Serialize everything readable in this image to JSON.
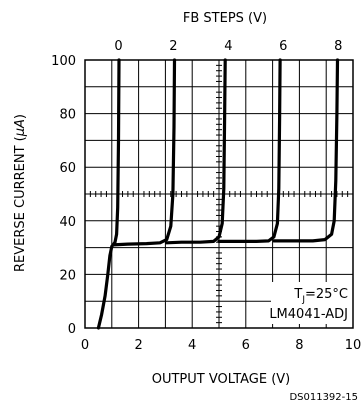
{
  "chart_data": {
    "type": "line",
    "top_title": "FB STEPS (V)",
    "xlabel": "OUTPUT VOLTAGE (V)",
    "ylabel": "REVERSE CURRENT (",
    "ylabel_unit": "µA",
    "ylabel_close": ")",
    "xlim": [
      0,
      10
    ],
    "ylim": [
      0,
      100
    ],
    "x_ticks": [
      "0",
      "2",
      "4",
      "6",
      "8",
      "10"
    ],
    "y_ticks": [
      "0",
      "20",
      "40",
      "60",
      "80",
      "100"
    ],
    "top_ticks": [
      "0",
      "2",
      "4",
      "6",
      "8"
    ],
    "grid": true,
    "annotation_tj_t": "T",
    "annotation_tj_sub": "J",
    "annotation_tj_val": "=25°C",
    "annotation_part": "LM4041-ADJ",
    "figure_id": "DS011392-15",
    "series": [
      {
        "x": [
          0.5,
          0.62,
          0.75,
          0.85,
          0.93,
          0.98,
          1.0,
          1.05,
          1.12,
          1.18,
          1.22,
          1.25,
          1.27
        ],
        "y": [
          0,
          5,
          12,
          20,
          27,
          29.5,
          30.5,
          31,
          32,
          35,
          45,
          70,
          100
        ]
      },
      {
        "x": [
          1.05,
          1.6,
          2.3,
          2.8,
          3.05,
          3.2,
          3.28,
          3.32,
          3.34
        ],
        "y": [
          31,
          31.3,
          31.5,
          31.8,
          33,
          38,
          50,
          75,
          100
        ]
      },
      {
        "x": [
          3.05,
          3.6,
          4.3,
          4.8,
          5.0,
          5.12,
          5.18,
          5.21,
          5.23
        ],
        "y": [
          31.8,
          32,
          32,
          32.3,
          34,
          39,
          52,
          78,
          100
        ]
      },
      {
        "x": [
          5.0,
          5.7,
          6.4,
          6.85,
          7.05,
          7.18,
          7.23,
          7.26,
          7.28
        ],
        "y": [
          32.3,
          32.3,
          32.3,
          32.5,
          34,
          39,
          52,
          78,
          100
        ]
      },
      {
        "x": [
          7.05,
          7.8,
          8.5,
          8.95,
          9.2,
          9.3,
          9.36,
          9.4,
          9.42
        ],
        "y": [
          32.5,
          32.5,
          32.5,
          33,
          35,
          40,
          55,
          80,
          100
        ]
      }
    ]
  }
}
